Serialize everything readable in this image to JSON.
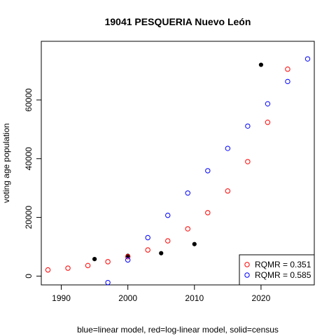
{
  "chart_data": {
    "type": "scatter",
    "title": "19041 PESQUERIA Nuevo León",
    "xlabel": "blue=linear model, red=log-linear model, solid=census",
    "ylabel": "voting age population",
    "xlim": [
      1987,
      2028
    ],
    "ylim": [
      -3000,
      80000
    ],
    "x_ticks": [
      1990,
      2000,
      2010,
      2020
    ],
    "y_ticks": [
      0,
      20000,
      40000,
      60000
    ],
    "x_tick_labels": [
      "1990",
      "2000",
      "2010",
      "2020"
    ],
    "y_tick_labels": [
      "0",
      "20000",
      "40000",
      "60000"
    ],
    "grid": false,
    "legend_position": "bottom-right",
    "series": [
      {
        "key": "census",
        "style": "solid",
        "color": "#000000",
        "points": [
          {
            "x": 1995,
            "y": 5800
          },
          {
            "x": 2000,
            "y": 6900
          },
          {
            "x": 2005,
            "y": 7800
          },
          {
            "x": 2010,
            "y": 10900
          },
          {
            "x": 2020,
            "y": 72000
          }
        ]
      },
      {
        "key": "log-linear",
        "style": "open",
        "color": "#ff0000",
        "points": [
          {
            "x": 1988,
            "y": 2100
          },
          {
            "x": 1991,
            "y": 2700
          },
          {
            "x": 1994,
            "y": 3600
          },
          {
            "x": 1997,
            "y": 4900
          },
          {
            "x": 2000,
            "y": 6600
          },
          {
            "x": 2003,
            "y": 8900
          },
          {
            "x": 2006,
            "y": 12000
          },
          {
            "x": 2009,
            "y": 16100
          },
          {
            "x": 2012,
            "y": 21600
          },
          {
            "x": 2015,
            "y": 29000
          },
          {
            "x": 2018,
            "y": 39000
          },
          {
            "x": 2021,
            "y": 52400
          },
          {
            "x": 2024,
            "y": 70500
          }
        ]
      },
      {
        "key": "linear",
        "style": "open",
        "color": "#0000ff",
        "points": [
          {
            "x": 1997,
            "y": -2200
          },
          {
            "x": 2000,
            "y": 5500
          },
          {
            "x": 2003,
            "y": 13100
          },
          {
            "x": 2006,
            "y": 20700
          },
          {
            "x": 2009,
            "y": 28300
          },
          {
            "x": 2012,
            "y": 35900
          },
          {
            "x": 2015,
            "y": 43500
          },
          {
            "x": 2018,
            "y": 51100
          },
          {
            "x": 2021,
            "y": 58700
          },
          {
            "x": 2024,
            "y": 66300
          },
          {
            "x": 2027,
            "y": 74000
          }
        ]
      }
    ],
    "legend": [
      {
        "label": "RQMR = 0.351",
        "color": "#ff0000"
      },
      {
        "label": "RQMR = 0.585",
        "color": "#0000ff"
      }
    ]
  }
}
